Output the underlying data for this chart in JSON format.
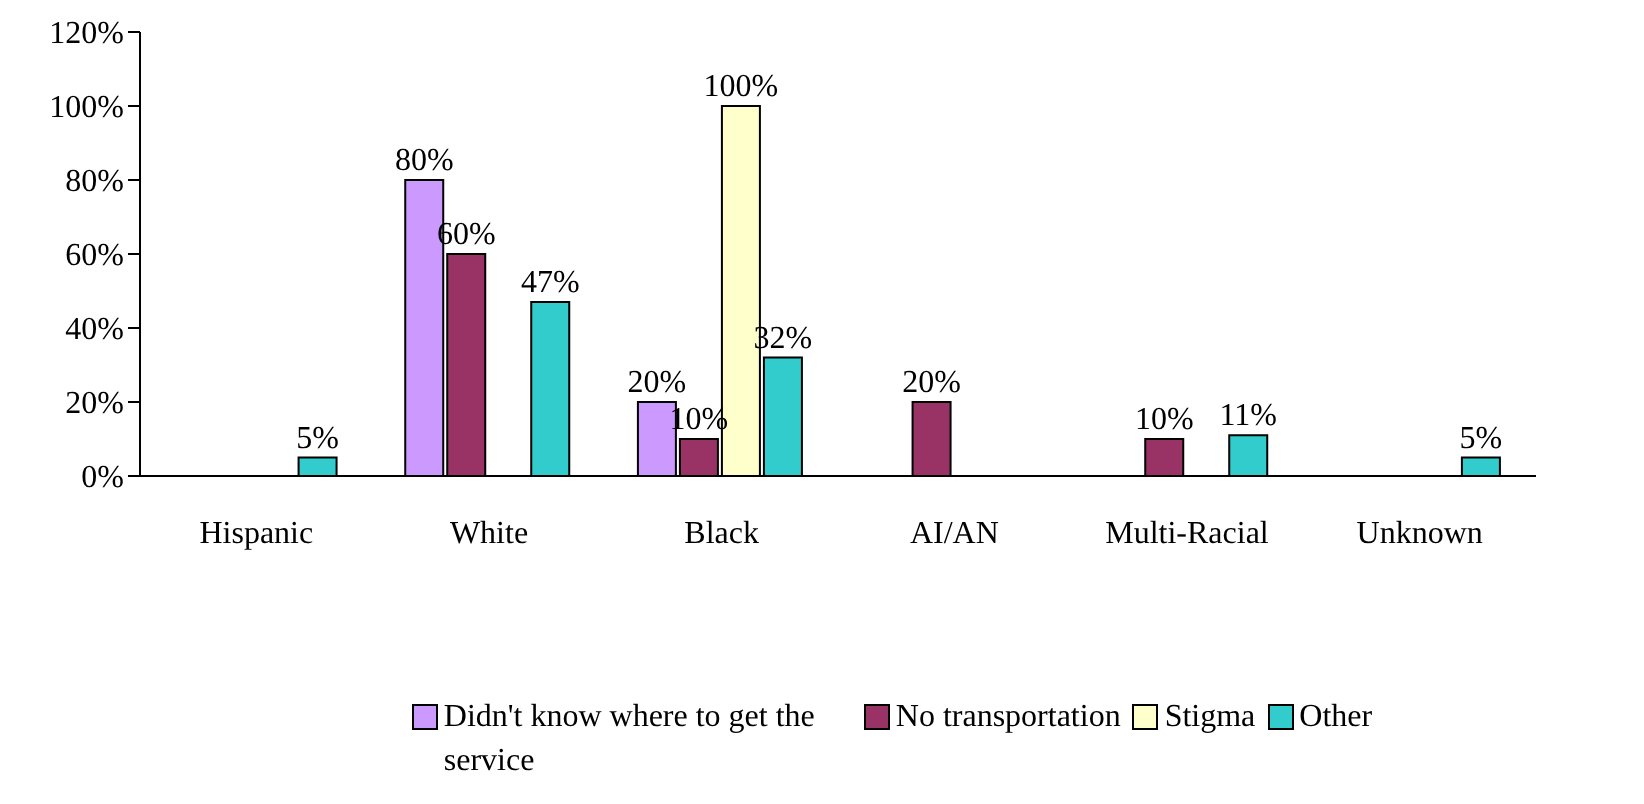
{
  "chart_data": {
    "type": "bar",
    "categories": [
      "Hispanic",
      "White",
      "Black",
      "AI/AN",
      "Multi-Racial",
      "Unknown"
    ],
    "series": [
      {
        "name": "Didn't know where to get the service",
        "color": "#cc99ff",
        "values": [
          null,
          80,
          20,
          null,
          null,
          null
        ],
        "value_labels": [
          null,
          "80%",
          "20%",
          null,
          null,
          null
        ]
      },
      {
        "name": "No transportation",
        "color": "#993366",
        "values": [
          null,
          60,
          10,
          20,
          10,
          null
        ],
        "value_labels": [
          null,
          "60%",
          "10%",
          "20%",
          "10%",
          null
        ]
      },
      {
        "name": "Stigma",
        "color": "#ffffcc",
        "values": [
          null,
          null,
          100,
          null,
          null,
          null
        ],
        "value_labels": [
          null,
          null,
          "100%",
          null,
          null,
          null
        ]
      },
      {
        "name": "Other",
        "color": "#33cccc",
        "values": [
          5,
          47,
          32,
          null,
          11,
          5
        ],
        "value_labels": [
          "5%",
          "47%",
          "32%",
          null,
          "11%",
          "5%"
        ]
      }
    ],
    "ylim": [
      0,
      120
    ],
    "yticks": [
      {
        "value": 0,
        "label": "0%"
      },
      {
        "value": 20,
        "label": "20%"
      },
      {
        "value": 40,
        "label": "40%"
      },
      {
        "value": 60,
        "label": "60%"
      },
      {
        "value": 80,
        "label": "80%"
      },
      {
        "value": 100,
        "label": "100%"
      },
      {
        "value": 120,
        "label": "120%"
      }
    ],
    "grid": false,
    "legend": "bottom"
  }
}
